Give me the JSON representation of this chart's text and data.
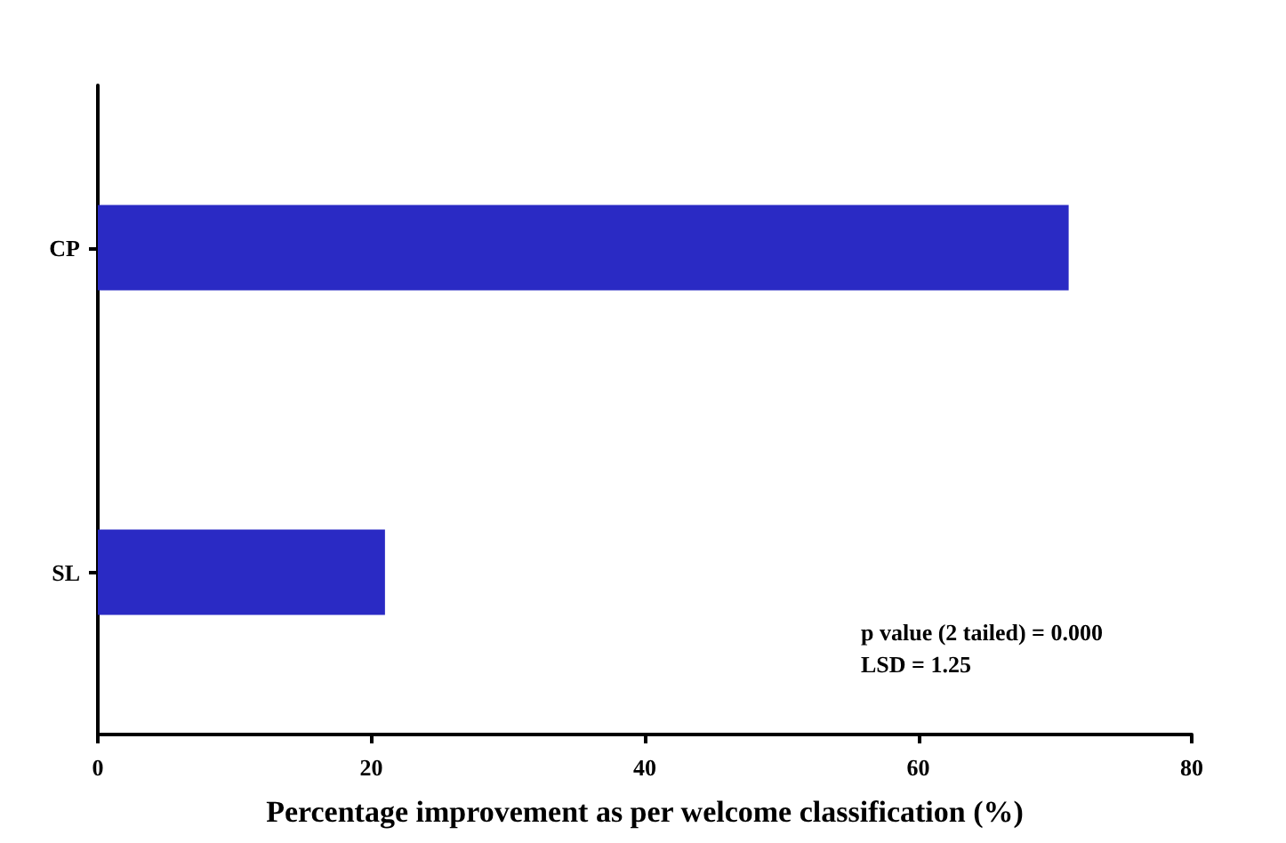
{
  "chart_data": {
    "type": "bar",
    "orientation": "horizontal",
    "xlabel": "Percentage improvement as per welcome classification (%)",
    "categories": [
      "CP",
      "SL"
    ],
    "values": [
      71,
      21
    ],
    "color": "#2a2ac4",
    "xlim": [
      0,
      80
    ],
    "xticks": [
      0,
      20,
      40,
      60,
      80
    ],
    "grid": false,
    "annotations": [
      "p value (2 tailed) = 0.000",
      "LSD = 1.25"
    ]
  }
}
